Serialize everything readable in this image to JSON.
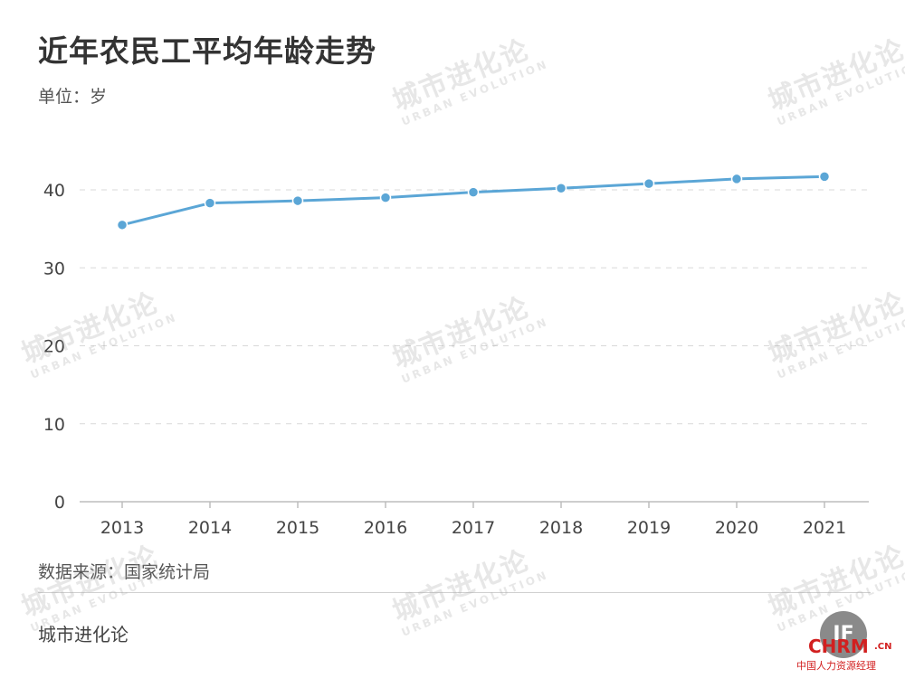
{
  "chart_data": {
    "type": "line",
    "title": "近年农民工平均年龄走势",
    "unit_label": "单位：岁",
    "categories": [
      "2013",
      "2014",
      "2015",
      "2016",
      "2017",
      "2018",
      "2019",
      "2020",
      "2021"
    ],
    "values": [
      35.5,
      38.3,
      38.6,
      39.0,
      39.7,
      40.2,
      40.8,
      41.4,
      41.7
    ],
    "ylim": [
      0,
      50
    ],
    "yticks": [
      "0",
      "10",
      "20",
      "30",
      "40"
    ],
    "grid": true,
    "line_color": "#5ba6d6"
  },
  "source_text": "数据来源：国家统计局",
  "brand_text": "城市进化论",
  "watermark": {
    "cn": "城市进化论",
    "en": "URBAN EVOLUTION"
  },
  "corner_logo": {
    "circle_text": "IF",
    "site": "CHRM",
    "site_suffix": ".CN",
    "site_sub": "中国人力资源经理"
  }
}
